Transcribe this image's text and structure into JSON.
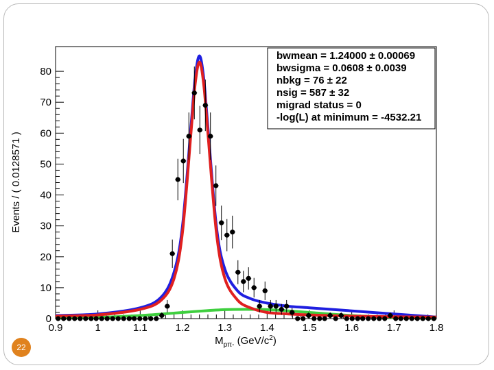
{
  "page": {
    "number": "22"
  },
  "colors": {
    "total_fit": "#1f1fe0",
    "signal": "#e02020",
    "background": "#3fcf3f",
    "data_points": "#000000",
    "badge": "#e0821e"
  },
  "chart_data": {
    "type": "scatter",
    "xlabel_main": "M",
    "xlabel_sub": "pπ-",
    "xlabel_unit_pre": " (GeV/c",
    "xlabel_unit_sup": "2",
    "xlabel_unit_post": ")",
    "ylabel": "Events / ( 0.0128571 )",
    "xlim": [
      0.9,
      1.8
    ],
    "ylim": [
      0,
      88
    ],
    "xticks": [
      "0.9",
      "1",
      "1.1",
      "1.2",
      "1.3",
      "1.4",
      "1.5",
      "1.6",
      "1.7",
      "1.8"
    ],
    "yticks": [
      "0",
      "10",
      "20",
      "30",
      "40",
      "50",
      "60",
      "70",
      "80"
    ],
    "bin_width": 0.0128571,
    "stats": [
      "bwmean = 1.24000 ± 0.00069",
      "bwsigma = 0.0608 ± 0.0039",
      "nbkg = 76 ± 22",
      "nsig = 587 ± 32",
      "migrad status = 0",
      "-log(L) at minimum = -4532.21"
    ],
    "fit": {
      "bwmean": 1.24,
      "bwsigma": 0.0608,
      "nbkg": 76,
      "nsig": 587
    },
    "points": [
      {
        "x": 0.906,
        "y": 0
      },
      {
        "x": 0.919,
        "y": 0
      },
      {
        "x": 0.932,
        "y": 0
      },
      {
        "x": 0.945,
        "y": 0
      },
      {
        "x": 0.958,
        "y": 0
      },
      {
        "x": 0.971,
        "y": 0
      },
      {
        "x": 0.984,
        "y": 0
      },
      {
        "x": 0.996,
        "y": 0
      },
      {
        "x": 1.009,
        "y": 0
      },
      {
        "x": 1.022,
        "y": 0
      },
      {
        "x": 1.035,
        "y": 0
      },
      {
        "x": 1.048,
        "y": 0
      },
      {
        "x": 1.061,
        "y": 0
      },
      {
        "x": 1.074,
        "y": 0
      },
      {
        "x": 1.086,
        "y": 0
      },
      {
        "x": 1.099,
        "y": 0
      },
      {
        "x": 1.112,
        "y": 0
      },
      {
        "x": 1.125,
        "y": 0
      },
      {
        "x": 1.138,
        "y": 0
      },
      {
        "x": 1.151,
        "y": 1
      },
      {
        "x": 1.164,
        "y": 4
      },
      {
        "x": 1.176,
        "y": 21
      },
      {
        "x": 1.189,
        "y": 45
      },
      {
        "x": 1.202,
        "y": 51
      },
      {
        "x": 1.215,
        "y": 59
      },
      {
        "x": 1.228,
        "y": 73
      },
      {
        "x": 1.241,
        "y": 61
      },
      {
        "x": 1.254,
        "y": 69
      },
      {
        "x": 1.266,
        "y": 59
      },
      {
        "x": 1.279,
        "y": 43
      },
      {
        "x": 1.292,
        "y": 31
      },
      {
        "x": 1.305,
        "y": 27
      },
      {
        "x": 1.318,
        "y": 28
      },
      {
        "x": 1.331,
        "y": 15
      },
      {
        "x": 1.344,
        "y": 12
      },
      {
        "x": 1.356,
        "y": 13
      },
      {
        "x": 1.369,
        "y": 10
      },
      {
        "x": 1.382,
        "y": 4
      },
      {
        "x": 1.395,
        "y": 9
      },
      {
        "x": 1.408,
        "y": 4
      },
      {
        "x": 1.421,
        "y": 4
      },
      {
        "x": 1.434,
        "y": 3
      },
      {
        "x": 1.446,
        "y": 4
      },
      {
        "x": 1.459,
        "y": 2
      },
      {
        "x": 1.472,
        "y": 0
      },
      {
        "x": 1.485,
        "y": 0
      },
      {
        "x": 1.498,
        "y": 1
      },
      {
        "x": 1.511,
        "y": 0
      },
      {
        "x": 1.524,
        "y": 0
      },
      {
        "x": 1.536,
        "y": 0
      },
      {
        "x": 1.549,
        "y": 1
      },
      {
        "x": 1.562,
        "y": 0
      },
      {
        "x": 1.575,
        "y": 1
      },
      {
        "x": 1.588,
        "y": 0
      },
      {
        "x": 1.601,
        "y": 0
      },
      {
        "x": 1.614,
        "y": 0
      },
      {
        "x": 1.626,
        "y": 0
      },
      {
        "x": 1.639,
        "y": 0
      },
      {
        "x": 1.652,
        "y": 0
      },
      {
        "x": 1.665,
        "y": 0
      },
      {
        "x": 1.678,
        "y": 0
      },
      {
        "x": 1.691,
        "y": 1
      },
      {
        "x": 1.704,
        "y": 0
      },
      {
        "x": 1.716,
        "y": 0
      },
      {
        "x": 1.729,
        "y": 0
      },
      {
        "x": 1.742,
        "y": 0
      },
      {
        "x": 1.755,
        "y": 0
      },
      {
        "x": 1.768,
        "y": 0
      },
      {
        "x": 1.781,
        "y": 0
      },
      {
        "x": 1.794,
        "y": 0
      }
    ],
    "curves": [
      {
        "name": "total",
        "color": "#1f1fe0",
        "x": [
          0.9,
          1.0,
          1.1,
          1.15,
          1.18,
          1.2,
          1.22,
          1.23,
          1.24,
          1.25,
          1.26,
          1.28,
          1.3,
          1.33,
          1.36,
          1.4,
          1.45,
          1.5,
          1.6,
          1.7,
          1.8
        ],
        "y": [
          1,
          1.5,
          3.5,
          7,
          15,
          30,
          62,
          78,
          85,
          78,
          62,
          30,
          16,
          9,
          6.5,
          5,
          4,
          3.5,
          2.5,
          1.5,
          0.5
        ]
      },
      {
        "name": "signal",
        "color": "#e02020",
        "x": [
          0.9,
          1.0,
          1.1,
          1.15,
          1.18,
          1.2,
          1.22,
          1.23,
          1.24,
          1.25,
          1.26,
          1.28,
          1.3,
          1.33,
          1.36,
          1.4,
          1.45,
          1.5,
          1.6,
          1.7,
          1.8
        ],
        "y": [
          0.8,
          1.2,
          3,
          6,
          13,
          28,
          60,
          76,
          83,
          76,
          60,
          28,
          13,
          6,
          3.5,
          2,
          1.5,
          1.2,
          0.8,
          0.6,
          0.5
        ]
      },
      {
        "name": "background",
        "color": "#3fcf3f",
        "x": [
          0.9,
          1.0,
          1.1,
          1.2,
          1.25,
          1.3,
          1.35,
          1.4,
          1.45,
          1.5,
          1.6,
          1.7,
          1.8
        ],
        "y": [
          0.2,
          0.4,
          1.0,
          2.0,
          2.5,
          2.9,
          3.0,
          2.9,
          2.5,
          2.0,
          1.0,
          0.4,
          0.1
        ]
      }
    ]
  }
}
